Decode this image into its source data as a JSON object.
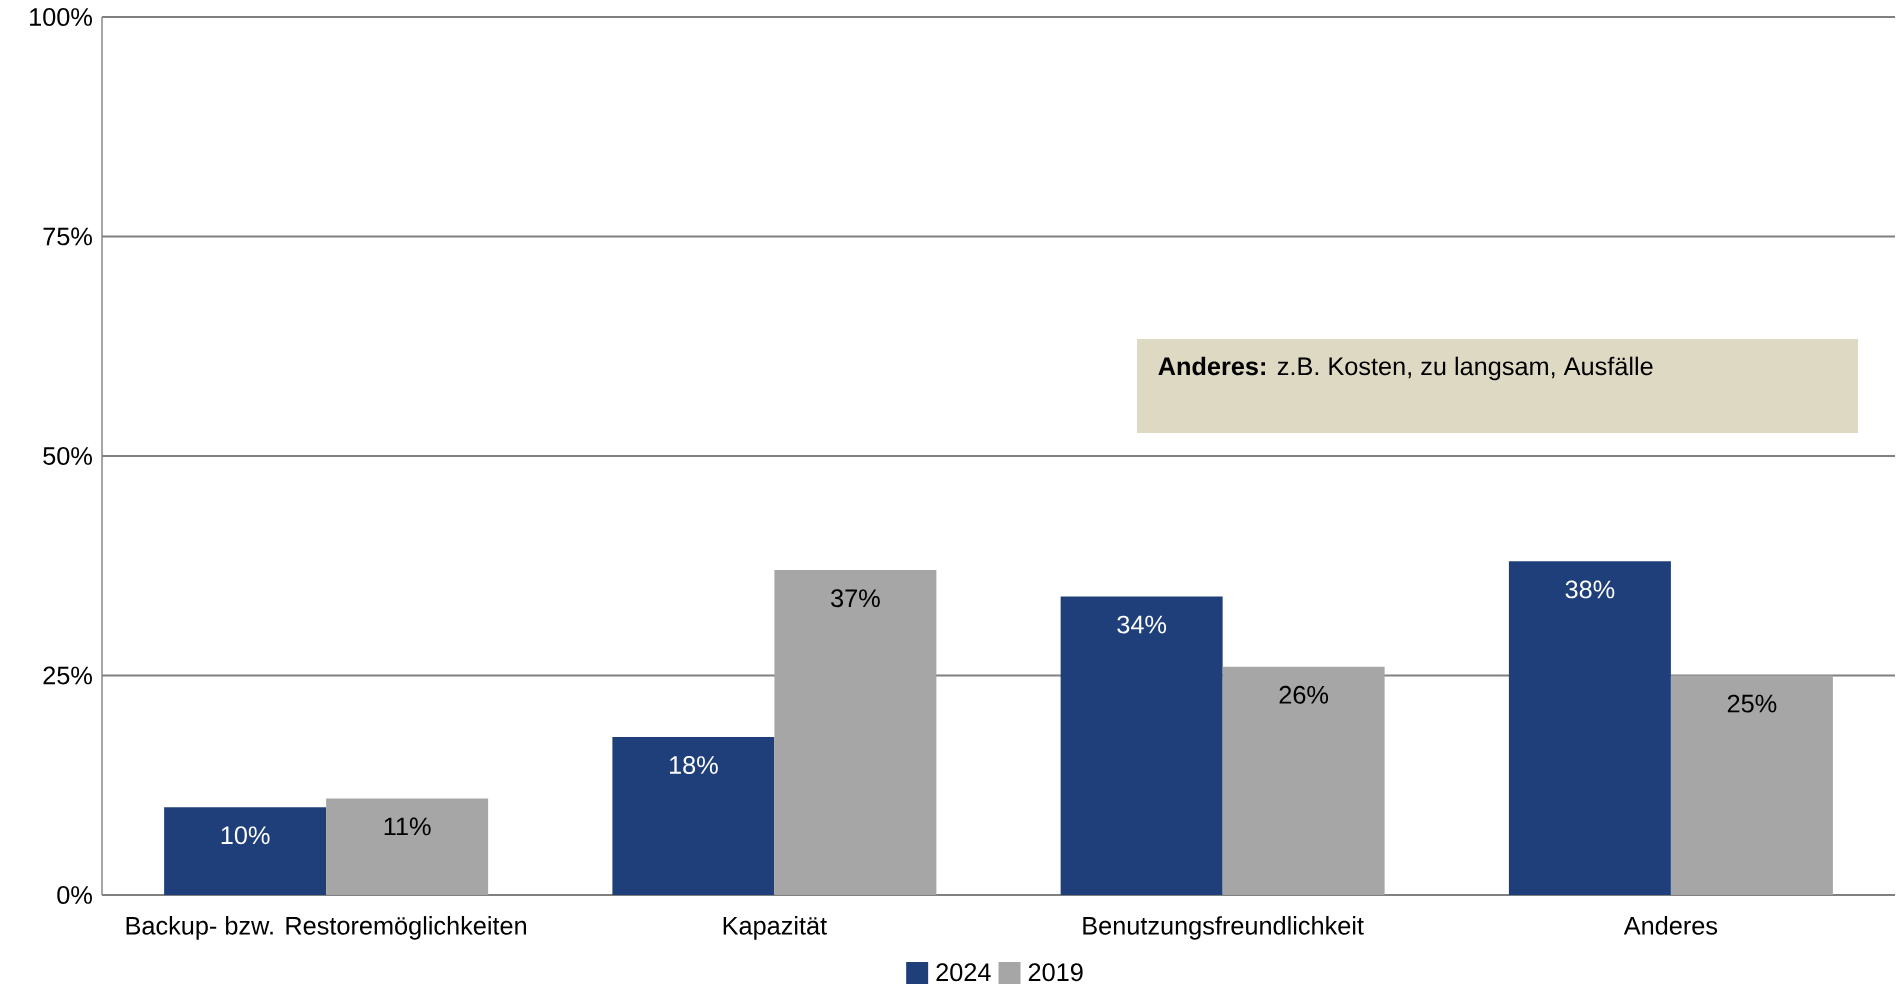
{
  "chart_data": {
    "type": "bar",
    "categories": [
      "Backup- bzw. Restoremöglichkeiten",
      "Kapazität",
      "Benutzungsfreundlichkeit",
      "Anderes"
    ],
    "series": [
      {
        "name": "2024",
        "color": "#1f3f7a",
        "values": [
          10,
          18,
          34,
          38
        ],
        "value_labels": [
          "10%",
          "18%",
          "34%",
          "38%"
        ]
      },
      {
        "name": "2019",
        "color": "#a6a6a6",
        "values": [
          11,
          37,
          26,
          25
        ],
        "value_labels": [
          "11%",
          "37%",
          "26%",
          "25%"
        ]
      }
    ],
    "ylim": [
      0,
      100
    ],
    "yticks": [
      {
        "value": 0,
        "label": "0%"
      },
      {
        "value": 25,
        "label": "25%"
      },
      {
        "value": 50,
        "label": "50%"
      },
      {
        "value": 75,
        "label": "75%"
      },
      {
        "value": 100,
        "label": "100%"
      }
    ],
    "grid": "y",
    "legend": "bottom",
    "annotations": [
      "**Anderes:** z.B. Kosten, zu langsam, Ausfälle"
    ]
  }
}
